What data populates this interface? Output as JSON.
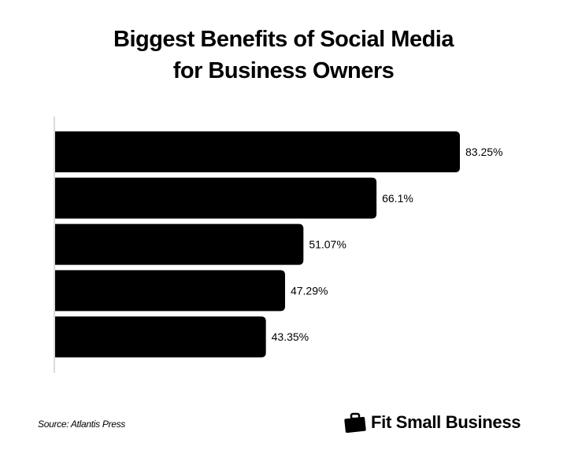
{
  "chart_data": {
    "type": "bar",
    "orientation": "horizontal",
    "title": "Biggest Benefits of Social Media for Business Owners",
    "title_lines": [
      "Biggest Benefits of Social Media",
      "for Business Owners"
    ],
    "values": [
      83.25,
      66.1,
      51.07,
      47.29,
      43.35
    ],
    "data_labels": [
      "83.25%",
      "66.1%",
      "51.07%",
      "47.29%",
      "43.35%"
    ],
    "xlim": [
      0,
      100
    ],
    "grid": false,
    "bar_color": "#000000"
  },
  "footer": {
    "source": "Source: Atlantis Press",
    "brand": "Fit Small Business",
    "brand_icon": "briefcase-icon"
  }
}
